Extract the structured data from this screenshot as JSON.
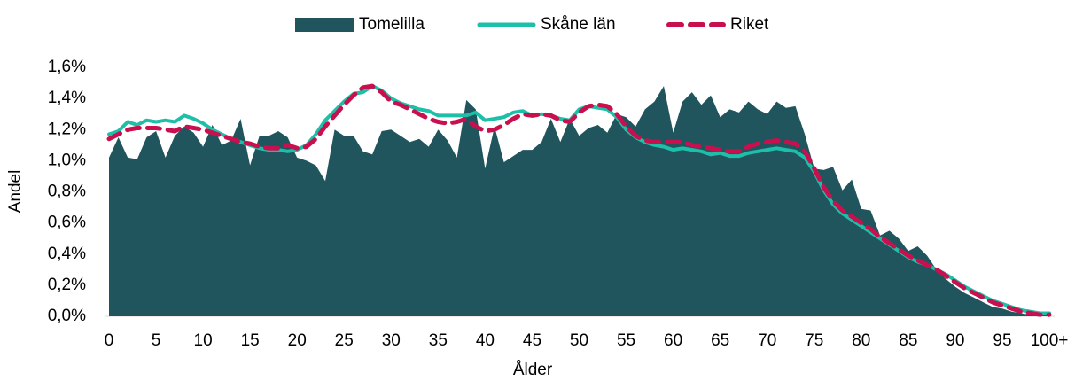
{
  "chart_data": {
    "type": "line",
    "xlabel": "Ålder",
    "ylabel": "Andel",
    "categories": [
      "0",
      null,
      null,
      null,
      null,
      "5",
      null,
      null,
      null,
      null,
      "10",
      null,
      null,
      null,
      null,
      "15",
      null,
      null,
      null,
      null,
      "20",
      null,
      null,
      null,
      null,
      "25",
      null,
      null,
      null,
      null,
      "30",
      null,
      null,
      null,
      null,
      "35",
      null,
      null,
      null,
      null,
      "40",
      null,
      null,
      null,
      null,
      "45",
      null,
      null,
      null,
      null,
      "50",
      null,
      null,
      null,
      null,
      "55",
      null,
      null,
      null,
      null,
      "60",
      null,
      null,
      null,
      null,
      "65",
      null,
      null,
      null,
      null,
      "70",
      null,
      null,
      null,
      null,
      "75",
      null,
      null,
      null,
      null,
      "80",
      null,
      null,
      null,
      null,
      "85",
      null,
      null,
      null,
      null,
      "90",
      null,
      null,
      null,
      null,
      "95",
      null,
      null,
      null,
      null,
      "100+"
    ],
    "ylim": [
      0,
      1.6
    ],
    "yticks": [
      {
        "value": 0,
        "label": "0,0%"
      },
      {
        "value": 0.2,
        "label": "0,2%"
      },
      {
        "value": 0.4,
        "label": "0,4%"
      },
      {
        "value": 0.6,
        "label": "0,6%"
      },
      {
        "value": 0.8,
        "label": "0,8%"
      },
      {
        "value": 1.0,
        "label": "1,0%"
      },
      {
        "value": 1.2,
        "label": "1,2%"
      },
      {
        "value": 1.4,
        "label": "1,4%"
      },
      {
        "value": 1.6,
        "label": "1,6%"
      }
    ],
    "legend": "top",
    "series": [
      {
        "name": "Tomelilla",
        "type": "area",
        "color": "#20555e",
        "values": [
          1.02,
          1.15,
          1.02,
          1.01,
          1.15,
          1.19,
          1.02,
          1.16,
          1.22,
          1.18,
          1.09,
          1.23,
          1.1,
          1.13,
          1.27,
          0.97,
          1.16,
          1.16,
          1.19,
          1.15,
          1.02,
          1.0,
          0.97,
          0.87,
          1.2,
          1.16,
          1.16,
          1.06,
          1.04,
          1.19,
          1.2,
          1.16,
          1.12,
          1.14,
          1.09,
          1.2,
          1.13,
          1.02,
          1.39,
          1.33,
          0.95,
          1.22,
          0.99,
          1.03,
          1.07,
          1.07,
          1.12,
          1.27,
          1.12,
          1.27,
          1.16,
          1.21,
          1.23,
          1.18,
          1.3,
          1.28,
          1.22,
          1.33,
          1.38,
          1.48,
          1.18,
          1.38,
          1.44,
          1.36,
          1.42,
          1.28,
          1.33,
          1.31,
          1.38,
          1.33,
          1.3,
          1.38,
          1.34,
          1.35,
          1.17,
          0.95,
          0.94,
          0.96,
          0.81,
          0.88,
          0.69,
          0.68,
          0.52,
          0.55,
          0.5,
          0.42,
          0.45,
          0.39,
          0.3,
          0.24,
          0.19,
          0.15,
          0.12,
          0.09,
          0.06,
          0.05,
          0.03,
          0.02,
          0.01,
          0.01,
          0.01
        ]
      },
      {
        "name": "Skåne län",
        "type": "line",
        "color": "#1dbfa8",
        "values": [
          1.17,
          1.19,
          1.25,
          1.23,
          1.26,
          1.25,
          1.26,
          1.25,
          1.29,
          1.27,
          1.24,
          1.2,
          1.17,
          1.14,
          1.12,
          1.1,
          1.08,
          1.07,
          1.07,
          1.06,
          1.07,
          1.1,
          1.17,
          1.26,
          1.32,
          1.38,
          1.43,
          1.44,
          1.48,
          1.45,
          1.4,
          1.37,
          1.35,
          1.33,
          1.32,
          1.29,
          1.29,
          1.29,
          1.29,
          1.31,
          1.26,
          1.27,
          1.28,
          1.31,
          1.32,
          1.29,
          1.3,
          1.29,
          1.27,
          1.26,
          1.33,
          1.35,
          1.34,
          1.33,
          1.28,
          1.2,
          1.15,
          1.12,
          1.1,
          1.09,
          1.07,
          1.08,
          1.07,
          1.06,
          1.04,
          1.05,
          1.03,
          1.03,
          1.05,
          1.06,
          1.07,
          1.08,
          1.07,
          1.06,
          1.02,
          0.93,
          0.81,
          0.72,
          0.66,
          0.62,
          0.58,
          0.54,
          0.5,
          0.46,
          0.42,
          0.38,
          0.35,
          0.33,
          0.3,
          0.27,
          0.23,
          0.19,
          0.16,
          0.13,
          0.1,
          0.08,
          0.06,
          0.04,
          0.03,
          0.02,
          0.02
        ]
      },
      {
        "name": "Riket",
        "type": "dashed",
        "color": "#c8104f",
        "values": [
          1.14,
          1.17,
          1.2,
          1.21,
          1.21,
          1.21,
          1.2,
          1.19,
          1.22,
          1.21,
          1.2,
          1.18,
          1.16,
          1.14,
          1.12,
          1.11,
          1.09,
          1.08,
          1.08,
          1.1,
          1.08,
          1.09,
          1.14,
          1.22,
          1.29,
          1.36,
          1.42,
          1.47,
          1.48,
          1.44,
          1.38,
          1.36,
          1.33,
          1.3,
          1.27,
          1.25,
          1.24,
          1.25,
          1.27,
          1.22,
          1.19,
          1.2,
          1.23,
          1.27,
          1.3,
          1.29,
          1.3,
          1.29,
          1.26,
          1.25,
          1.31,
          1.35,
          1.36,
          1.35,
          1.3,
          1.22,
          1.16,
          1.13,
          1.12,
          1.12,
          1.12,
          1.12,
          1.1,
          1.09,
          1.08,
          1.07,
          1.06,
          1.06,
          1.09,
          1.11,
          1.12,
          1.13,
          1.12,
          1.11,
          1.06,
          0.95,
          0.83,
          0.74,
          0.68,
          0.64,
          0.6,
          0.56,
          0.51,
          0.47,
          0.43,
          0.39,
          0.36,
          0.33,
          0.3,
          0.26,
          0.22,
          0.18,
          0.15,
          0.12,
          0.09,
          0.07,
          0.05,
          0.03,
          0.02,
          0.01,
          0.01
        ]
      }
    ]
  }
}
